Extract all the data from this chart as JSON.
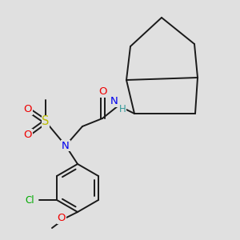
{
  "bg_color": "#e0e0e0",
  "bond_color": "#1a1a1a",
  "bond_width": 1.4,
  "atom_colors": {
    "C": "#1a1a1a",
    "N": "#0000ee",
    "O": "#ee0000",
    "S": "#bbbb00",
    "Cl": "#00aa00",
    "H": "#339999"
  },
  "fs": 8.5
}
